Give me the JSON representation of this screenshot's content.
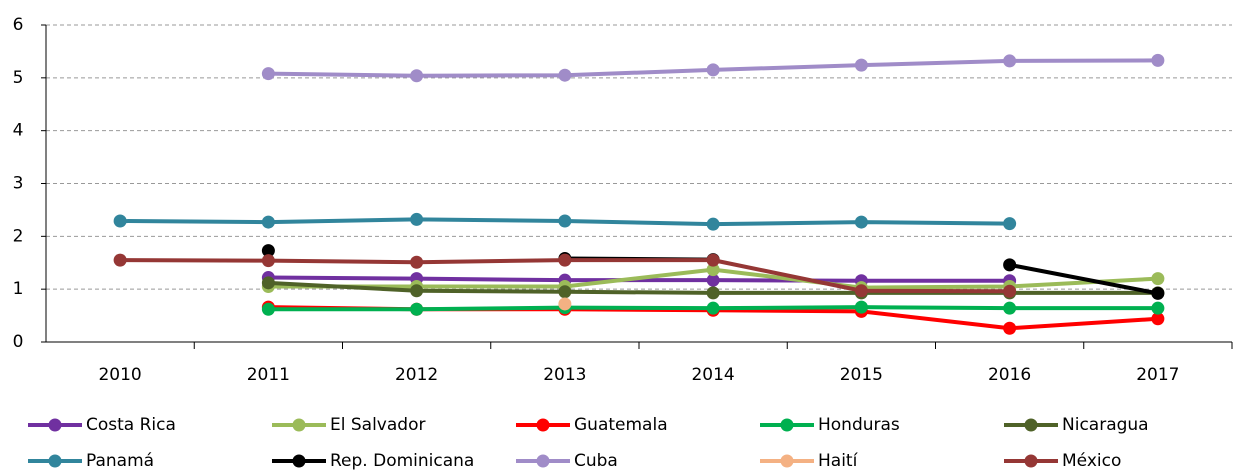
{
  "chart_data": {
    "type": "line",
    "categories": [
      "2010",
      "2011",
      "2012",
      "2013",
      "2014",
      "2015",
      "2016",
      "2017"
    ],
    "ylim": [
      0,
      6
    ],
    "yticks": [
      0,
      1,
      2,
      3,
      4,
      5,
      6
    ],
    "grid": true,
    "series": [
      {
        "name": "Costa Rica",
        "color": "#7030a0",
        "values": [
          null,
          1.22,
          1.2,
          1.17,
          1.17,
          1.16,
          1.16,
          null
        ]
      },
      {
        "name": "El Salvador",
        "color": "#9bbb59",
        "values": [
          null,
          1.05,
          1.05,
          1.05,
          1.37,
          1.03,
          1.05,
          1.2
        ]
      },
      {
        "name": "Guatemala",
        "color": "#ff0000",
        "values": [
          null,
          0.66,
          0.62,
          0.62,
          0.6,
          0.58,
          0.26,
          0.44
        ]
      },
      {
        "name": "Honduras",
        "color": "#00b050",
        "values": [
          null,
          0.62,
          0.62,
          0.65,
          0.64,
          0.66,
          0.64,
          0.64
        ]
      },
      {
        "name": "Nicaragua",
        "color": "#4f6228",
        "values": [
          null,
          1.12,
          0.97,
          0.95,
          0.93,
          0.93,
          0.93,
          0.93
        ]
      },
      {
        "name": "Panamá",
        "color": "#31859c",
        "values": [
          2.29,
          2.27,
          2.32,
          2.29,
          2.23,
          2.27,
          2.24,
          null
        ]
      },
      {
        "name": "Rep. Dominicana",
        "color": "#000000",
        "values": [
          null,
          1.73,
          null,
          1.58,
          1.56,
          null,
          1.46,
          0.92
        ]
      },
      {
        "name": "Cuba",
        "color": "#a08cc8",
        "values": [
          null,
          5.08,
          5.04,
          5.05,
          5.15,
          5.24,
          5.32,
          5.33
        ]
      },
      {
        "name": "Haití",
        "color": "#f4b183",
        "values": [
          null,
          null,
          null,
          0.72,
          null,
          null,
          null,
          null
        ]
      },
      {
        "name": "México",
        "color": "#953735",
        "values": [
          1.55,
          1.54,
          1.51,
          1.55,
          1.55,
          0.97,
          0.96,
          null
        ]
      }
    ]
  }
}
